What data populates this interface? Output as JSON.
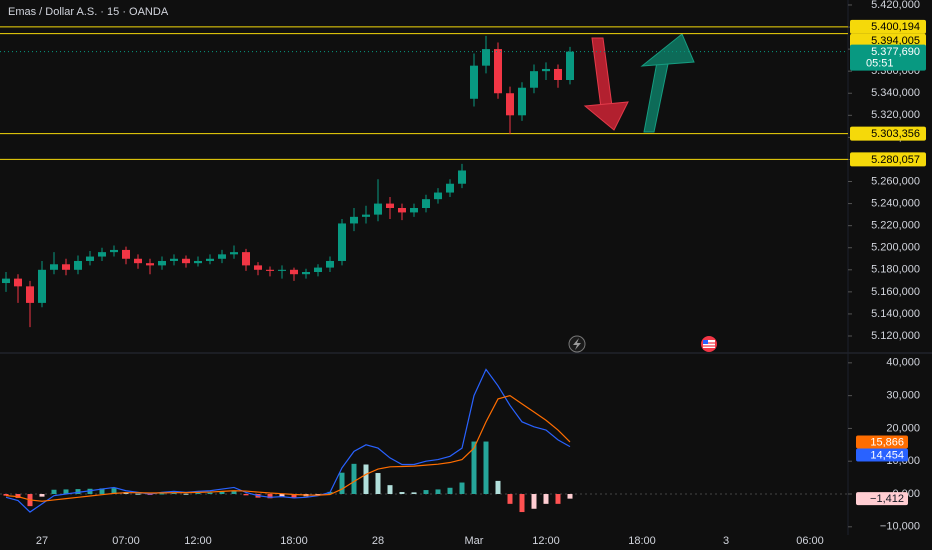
{
  "chart_data": {
    "type": "candlestick",
    "title": "Emas / Dollar A.S. · 15 · OANDA",
    "categories": [
      null,
      null,
      null,
      "27",
      null,
      null,
      null,
      null,
      null,
      null,
      "07:00",
      null,
      null,
      null,
      null,
      null,
      "12:00",
      null,
      null,
      null,
      null,
      null,
      null,
      null,
      "18:00",
      null,
      null,
      null,
      null,
      null,
      null,
      "28",
      null,
      null,
      null,
      null,
      null,
      null,
      null,
      "Mar",
      null,
      null,
      null,
      null,
      null,
      "12:00",
      null,
      null,
      null,
      null,
      null,
      null,
      null,
      "18:00",
      null,
      null,
      null,
      null,
      null,
      null,
      "3",
      null,
      null,
      null,
      null,
      null,
      null,
      "06:00",
      null,
      null
    ],
    "open": [
      5.168,
      5.172,
      5.165,
      5.15,
      5.18,
      5.185,
      5.18,
      5.188,
      5.192,
      5.196,
      5.198,
      5.19,
      5.186,
      5.184,
      5.188,
      5.19,
      5.186,
      5.188,
      5.19,
      5.194,
      5.196,
      5.184,
      5.18,
      5.179,
      5.18,
      5.176,
      5.178,
      5.182,
      5.188,
      5.222,
      5.228,
      5.23,
      5.24,
      5.236,
      5.232,
      5.236,
      5.244,
      5.25,
      5.258,
      5.335,
      5.365,
      5.38,
      5.34,
      5.32,
      5.345,
      5.36,
      5.362,
      5.352,
      null,
      null,
      null,
      null,
      null,
      null,
      null,
      null,
      null,
      null,
      null,
      null,
      null,
      null,
      null,
      null,
      null,
      null,
      null,
      null,
      null,
      null
    ],
    "high": [
      5.178,
      5.176,
      5.17,
      5.188,
      5.196,
      5.19,
      5.193,
      5.197,
      5.2,
      5.202,
      5.201,
      5.194,
      5.19,
      5.192,
      5.194,
      5.193,
      5.192,
      5.194,
      5.198,
      5.202,
      5.199,
      5.187,
      5.183,
      5.184,
      5.182,
      5.181,
      5.185,
      5.192,
      5.226,
      5.236,
      5.238,
      5.262,
      5.246,
      5.24,
      5.24,
      5.248,
      5.254,
      5.262,
      5.276,
      5.376,
      5.392,
      5.386,
      5.346,
      5.35,
      5.366,
      5.368,
      5.366,
      5.382,
      null,
      null,
      null,
      null,
      null,
      null,
      null,
      null,
      null,
      null,
      null,
      null,
      null,
      null,
      null,
      null,
      null,
      null,
      null,
      null,
      null,
      null
    ],
    "low": [
      5.16,
      5.15,
      5.128,
      5.146,
      5.176,
      5.175,
      5.176,
      5.184,
      5.188,
      5.192,
      5.185,
      5.181,
      5.176,
      5.18,
      5.184,
      5.182,
      5.183,
      5.185,
      5.186,
      5.19,
      5.179,
      5.175,
      5.174,
      5.172,
      5.17,
      5.172,
      5.174,
      5.178,
      5.184,
      5.215,
      5.222,
      5.224,
      5.226,
      5.225,
      5.228,
      5.232,
      5.24,
      5.246,
      5.254,
      5.328,
      5.358,
      5.335,
      5.303,
      5.315,
      5.34,
      5.352,
      5.345,
      5.348,
      null,
      null,
      null,
      null,
      null,
      null,
      null,
      null,
      null,
      null,
      null,
      null,
      null,
      null,
      null,
      null,
      null,
      null,
      null,
      null,
      null,
      null
    ],
    "close": [
      5.172,
      5.165,
      5.15,
      5.18,
      5.185,
      5.18,
      5.188,
      5.192,
      5.196,
      5.198,
      5.19,
      5.186,
      5.184,
      5.188,
      5.19,
      5.186,
      5.188,
      5.19,
      5.194,
      5.196,
      5.184,
      5.18,
      5.179,
      5.18,
      5.176,
      5.178,
      5.182,
      5.188,
      5.222,
      5.228,
      5.23,
      5.24,
      5.236,
      5.232,
      5.236,
      5.244,
      5.25,
      5.258,
      5.27,
      5.365,
      5.38,
      5.34,
      5.32,
      5.345,
      5.36,
      5.362,
      5.352,
      5.37769,
      null,
      null,
      null,
      null,
      null,
      null,
      null,
      null,
      null,
      null,
      null,
      null,
      null,
      null,
      null,
      null,
      null,
      null,
      null,
      null,
      null,
      null
    ],
    "up_color": "#089981",
    "down_color": "#f23645",
    "ylim": [
      5.1055,
      5.4245
    ],
    "yticks": [
      {
        "value": 5.12,
        "label": "5.120,000"
      },
      {
        "value": 5.14,
        "label": "5.140,000"
      },
      {
        "value": 5.16,
        "label": "5.160,000"
      },
      {
        "value": 5.18,
        "label": "5.180,000"
      },
      {
        "value": 5.2,
        "label": "5.200,000"
      },
      {
        "value": 5.22,
        "label": "5.220,000"
      },
      {
        "value": 5.24,
        "label": "5.240,000"
      },
      {
        "value": 5.26,
        "label": "5.260,000"
      },
      {
        "value": 5.28,
        "label": "5.280,000"
      },
      {
        "value": 5.3,
        "label": "5.300,000"
      },
      {
        "value": 5.32,
        "label": "5.320,000"
      },
      {
        "value": 5.34,
        "label": "5.340,000"
      },
      {
        "value": 5.36,
        "label": "5.360,000"
      },
      {
        "value": 5.38,
        "label": "5.380,000"
      },
      {
        "value": 5.4,
        "label": "5.400,000"
      },
      {
        "value": 5.42,
        "label": "5.420,000"
      }
    ],
    "level_color": "#f5d90a",
    "levels": [
      {
        "value": 5.400194,
        "label": "5.400,194"
      },
      {
        "value": 5.394005,
        "label": "5.394,005"
      },
      {
        "value": 5.303356,
        "label": "5.303,356"
      },
      {
        "value": 5.280057,
        "label": "5.280,057"
      }
    ],
    "last_price": {
      "label": "5.377,690",
      "countdown": "05:51"
    },
    "indicator": {
      "type": "macd",
      "ylim": [
        -12500,
        43000
      ],
      "yticks": [
        {
          "value": 40000,
          "label": "40,000"
        },
        {
          "value": 30000,
          "label": "30,000"
        },
        {
          "value": 20000,
          "label": "20,000"
        },
        {
          "value": 10000,
          "label": "10,000"
        },
        {
          "value": 0,
          "label": "0,000"
        },
        {
          "value": -10000,
          "label": "−10,000"
        }
      ],
      "macd": {
        "color": "#2962ff",
        "last_label": "14,454",
        "values": [
          -1000,
          -2000,
          -5500,
          -3000,
          -500,
          0,
          500,
          1000,
          1500,
          2000,
          1000,
          500,
          0,
          500,
          800,
          500,
          800,
          1000,
          1500,
          2000,
          500,
          -500,
          -1000,
          -800,
          -1200,
          -1000,
          -500,
          500,
          8000,
          13000,
          15000,
          14000,
          11000,
          9000,
          9000,
          10000,
          10500,
          11500,
          14000,
          30000,
          38000,
          33000,
          27000,
          22000,
          20500,
          19500,
          16500,
          14454,
          null,
          null,
          null,
          null,
          null,
          null,
          null,
          null,
          null,
          null,
          null,
          null,
          null,
          null,
          null,
          null,
          null,
          null,
          null,
          null,
          null,
          null
        ]
      },
      "signal": {
        "color": "#ff6d00",
        "last_label": "15,866",
        "values": [
          -500,
          -800,
          -1800,
          -2200,
          -1800,
          -1400,
          -1000,
          -600,
          -200,
          200,
          400,
          400,
          300,
          350,
          400,
          420,
          500,
          600,
          800,
          1000,
          900,
          600,
          300,
          100,
          -150,
          -300,
          -350,
          -150,
          1500,
          3800,
          6000,
          7600,
          8300,
          8400,
          8500,
          8800,
          9100,
          9600,
          10500,
          14000,
          22000,
          29000,
          30000,
          27500,
          25000,
          22500,
          19500,
          15866,
          null,
          null,
          null,
          null,
          null,
          null,
          null,
          null,
          null,
          null,
          null,
          null,
          null,
          null,
          null,
          null,
          null,
          null,
          null,
          null,
          null,
          null
        ]
      },
      "histogram": {
        "last_label": "−1,412",
        "values": [
          -500,
          -1200,
          -3700,
          -800,
          1300,
          1400,
          1500,
          1600,
          1700,
          1800,
          600,
          100,
          -300,
          150,
          400,
          80,
          300,
          400,
          700,
          1000,
          -400,
          -1100,
          -1300,
          -900,
          -1050,
          -700,
          -150,
          650,
          6500,
          9200,
          9000,
          6400,
          2700,
          600,
          500,
          1200,
          1400,
          1900,
          3500,
          16000,
          16000,
          4000,
          -3000,
          -5500,
          -4500,
          -3000,
          -3000,
          -1412,
          null,
          null,
          null,
          null,
          null,
          null,
          null,
          null,
          null,
          null,
          null,
          null,
          null,
          null,
          null,
          null,
          null,
          null,
          null,
          null,
          null,
          null
        ]
      }
    }
  }
}
